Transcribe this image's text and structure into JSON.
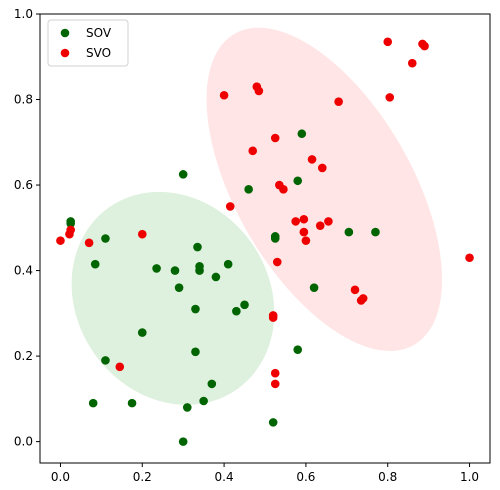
{
  "chart_data": {
    "type": "scatter",
    "xlim": [
      -0.05,
      1.05
    ],
    "ylim": [
      -0.05,
      1.0
    ],
    "x_ticks": [
      "0.0",
      "0.2",
      "0.4",
      "0.6",
      "0.8",
      "1.0"
    ],
    "y_ticks": [
      "0.0",
      "0.2",
      "0.4",
      "0.6",
      "0.8",
      "1.0"
    ],
    "legend_position": "top-left",
    "grid": false,
    "ellipses": [
      {
        "series": "SOV",
        "center": [
          0.275,
          0.335
        ],
        "rx": 0.235,
        "ry": 0.26,
        "angle_deg": -35,
        "color": "#c8e6c8",
        "alpha": 0.6
      },
      {
        "series": "SVO",
        "center": [
          0.645,
          0.59
        ],
        "rx": 0.215,
        "ry": 0.42,
        "angle_deg": -30,
        "color": "#ffd0d0",
        "alpha": 0.55
      }
    ],
    "series": [
      {
        "name": "SOV",
        "color": "#006400",
        "points": [
          [
            0.025,
            0.515
          ],
          [
            0.025,
            0.51
          ],
          [
            0.085,
            0.415
          ],
          [
            0.11,
            0.475
          ],
          [
            0.11,
            0.19
          ],
          [
            0.08,
            0.09
          ],
          [
            0.175,
            0.09
          ],
          [
            0.2,
            0.255
          ],
          [
            0.235,
            0.405
          ],
          [
            0.28,
            0.4
          ],
          [
            0.3,
            0.625
          ],
          [
            0.29,
            0.36
          ],
          [
            0.33,
            0.31
          ],
          [
            0.335,
            0.455
          ],
          [
            0.34,
            0.41
          ],
          [
            0.34,
            0.4
          ],
          [
            0.33,
            0.21
          ],
          [
            0.35,
            0.095
          ],
          [
            0.31,
            0.08
          ],
          [
            0.37,
            0.135
          ],
          [
            0.38,
            0.385
          ],
          [
            0.3,
            0.0
          ],
          [
            0.41,
            0.415
          ],
          [
            0.43,
            0.305
          ],
          [
            0.45,
            0.32
          ],
          [
            0.46,
            0.59
          ],
          [
            0.525,
            0.48
          ],
          [
            0.525,
            0.475
          ],
          [
            0.52,
            0.045
          ],
          [
            0.58,
            0.61
          ],
          [
            0.59,
            0.72
          ],
          [
            0.58,
            0.215
          ],
          [
            0.62,
            0.36
          ],
          [
            0.705,
            0.49
          ],
          [
            0.77,
            0.49
          ]
        ]
      },
      {
        "name": "SVO",
        "color": "#ee0000",
        "points": [
          [
            0.0,
            0.47
          ],
          [
            0.022,
            0.485
          ],
          [
            0.025,
            0.495
          ],
          [
            0.07,
            0.465
          ],
          [
            0.145,
            0.175
          ],
          [
            0.2,
            0.485
          ],
          [
            0.4,
            0.81
          ],
          [
            0.415,
            0.55
          ],
          [
            0.47,
            0.68
          ],
          [
            0.48,
            0.83
          ],
          [
            0.485,
            0.82
          ],
          [
            0.52,
            0.295
          ],
          [
            0.52,
            0.29
          ],
          [
            0.525,
            0.71
          ],
          [
            0.525,
            0.16
          ],
          [
            0.525,
            0.135
          ],
          [
            0.53,
            0.42
          ],
          [
            0.535,
            0.6
          ],
          [
            0.545,
            0.59
          ],
          [
            0.575,
            0.515
          ],
          [
            0.595,
            0.52
          ],
          [
            0.595,
            0.49
          ],
          [
            0.6,
            0.47
          ],
          [
            0.615,
            0.66
          ],
          [
            0.64,
            0.64
          ],
          [
            0.635,
            0.505
          ],
          [
            0.655,
            0.515
          ],
          [
            0.68,
            0.795
          ],
          [
            0.72,
            0.355
          ],
          [
            0.735,
            0.33
          ],
          [
            0.74,
            0.335
          ],
          [
            0.8,
            0.935
          ],
          [
            0.805,
            0.805
          ],
          [
            0.86,
            0.885
          ],
          [
            0.885,
            0.93
          ],
          [
            0.89,
            0.925
          ],
          [
            1.0,
            0.43
          ]
        ]
      }
    ]
  }
}
